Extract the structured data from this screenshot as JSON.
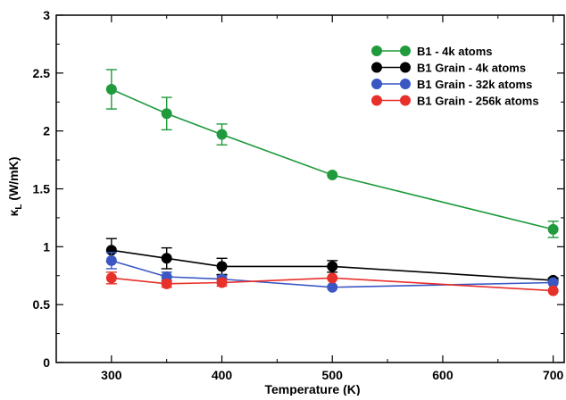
{
  "chart_data": {
    "type": "line",
    "title": "",
    "xlabel": "Temperature (K)",
    "ylabel": {
      "main": "κ",
      "sub": "L",
      "unit": " (W/mK)"
    },
    "xlim": [
      250,
      710
    ],
    "ylim": [
      0,
      3
    ],
    "xticks": [
      300,
      400,
      500,
      600,
      700
    ],
    "xticks_minor": [
      350,
      450,
      550,
      650
    ],
    "yticks": [
      0,
      0.5,
      1,
      1.5,
      2,
      2.5,
      3
    ],
    "ytick_labels": [
      "0",
      "0.5",
      "1",
      "1.5",
      "2",
      "2.5",
      "3"
    ],
    "grid": false,
    "legend_position": "top-right",
    "series": [
      {
        "name": "B1 - 4k atoms",
        "color": "#1f9a3c",
        "x": [
          300,
          350,
          400,
          500,
          700
        ],
        "y": [
          2.36,
          2.15,
          1.97,
          1.62,
          1.15
        ],
        "err": [
          0.17,
          0.14,
          0.09,
          0.0,
          0.07
        ]
      },
      {
        "name": "B1 Grain - 4k atoms",
        "color": "#000000",
        "x": [
          300,
          350,
          400,
          500,
          700
        ],
        "y": [
          0.97,
          0.9,
          0.83,
          0.83,
          0.71
        ],
        "err": [
          0.1,
          0.09,
          0.07,
          0.05,
          0.02
        ]
      },
      {
        "name": "B1 Grain - 32k atoms",
        "color": "#3a57c4",
        "x": [
          300,
          350,
          400,
          500,
          700
        ],
        "y": [
          0.88,
          0.74,
          0.72,
          0.65,
          0.69
        ],
        "err": [
          0.07,
          0.04,
          0.03,
          0.0,
          0.0
        ]
      },
      {
        "name": "B1 Grain - 256k atoms",
        "color": "#e8302a",
        "x": [
          300,
          350,
          400,
          500,
          700
        ],
        "y": [
          0.73,
          0.68,
          0.69,
          0.73,
          0.62
        ],
        "err": [
          0.05,
          0.03,
          0.03,
          0.0,
          0.0
        ]
      }
    ]
  }
}
